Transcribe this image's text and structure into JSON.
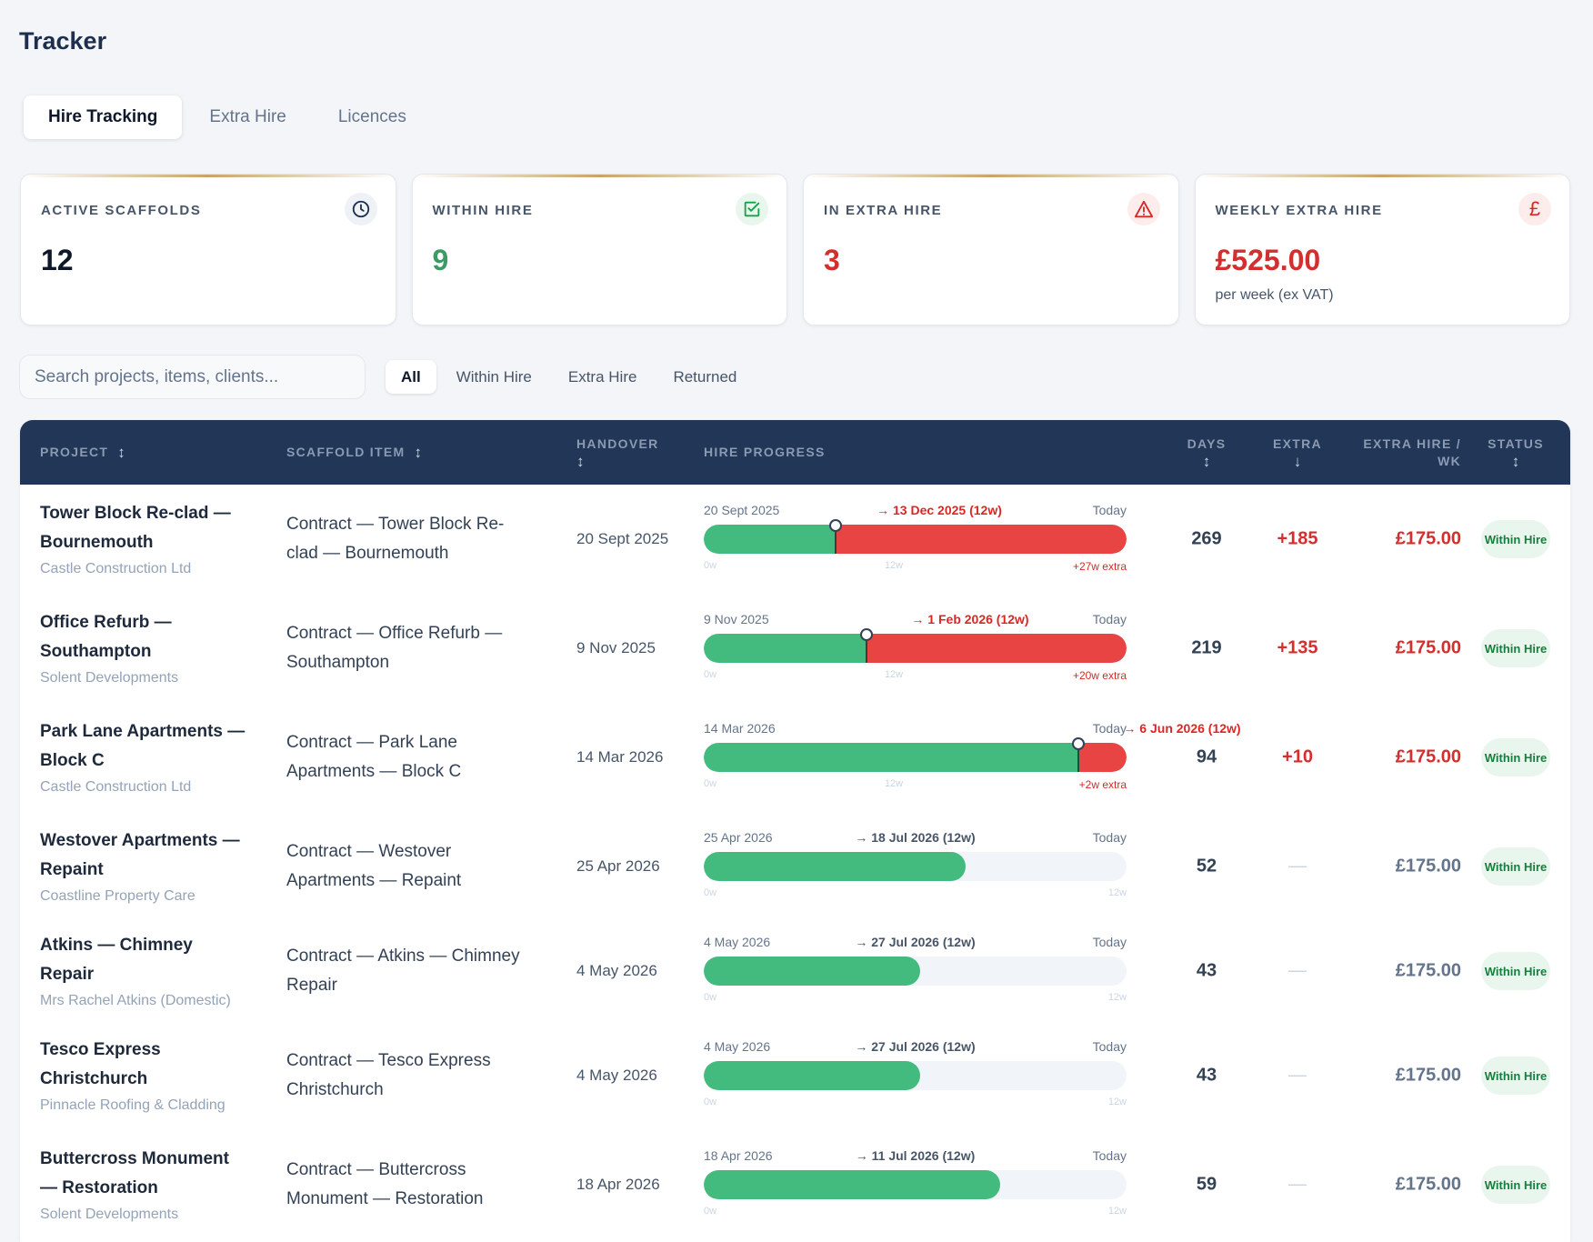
{
  "app": {
    "title": "Tracker"
  },
  "tabs": [
    {
      "label": "Hire Tracking",
      "active": true
    },
    {
      "label": "Extra Hire",
      "active": false
    },
    {
      "label": "Licences",
      "active": false
    }
  ],
  "cards": [
    {
      "label": "ACTIVE SCAFFOLDS",
      "value": "12",
      "icon": "clock-icon",
      "tone": "navy"
    },
    {
      "label": "WITHIN HIRE",
      "value": "9",
      "icon": "check-square-icon",
      "tone": "green"
    },
    {
      "label": "IN EXTRA HIRE",
      "value": "3",
      "icon": "warning-icon",
      "tone": "red"
    },
    {
      "label": "WEEKLY EXTRA HIRE",
      "value": "£525.00",
      "sub": "per week (ex VAT)",
      "icon": "pound-icon",
      "tone": "red"
    }
  ],
  "search": {
    "placeholder": "Search projects, items, clients...",
    "value": ""
  },
  "filters": [
    {
      "label": "All",
      "active": true
    },
    {
      "label": "Within Hire",
      "active": false
    },
    {
      "label": "Extra Hire",
      "active": false
    },
    {
      "label": "Returned",
      "active": false
    }
  ],
  "table": {
    "columns": [
      {
        "label": "PROJECT",
        "sort": "↕"
      },
      {
        "label": "SCAFFOLD ITEM",
        "sort": "↕"
      },
      {
        "label": "HANDOVER",
        "sort": "↕"
      },
      {
        "label": "HIRE PROGRESS",
        "sort": ""
      },
      {
        "label": "DAYS",
        "sort": "↕"
      },
      {
        "label": "EXTRA",
        "sort": "↓"
      },
      {
        "label": "EXTRA HIRE / WK",
        "sort": ""
      },
      {
        "label": "STATUS",
        "sort": "↕"
      }
    ],
    "rows": [
      {
        "project": "Tower Block Re-clad — Bournemouth",
        "client": "Castle Construction Ltd",
        "item": "Contract — Tower Block Re-clad — Bournemouth",
        "handover": "20 Sept 2025",
        "progress": {
          "start": "20 Sept 2025",
          "due": "→ 13 Dec 2025 (12w)",
          "today": "Today",
          "zero": "0w",
          "mid": "12w",
          "extra_label": "+27w extra",
          "hire_fraction": 0.3125,
          "overdue": true
        },
        "days": "269",
        "extra": "+185",
        "weekly": "£175.00",
        "status": "Within Hire"
      },
      {
        "project": "Office Refurb — Southampton",
        "client": "Solent Developments",
        "item": "Contract — Office Refurb — Southampton",
        "handover": "9 Nov 2025",
        "progress": {
          "start": "9 Nov 2025",
          "due": "→ 1 Feb 2026 (12w)",
          "today": "Today",
          "zero": "0w",
          "mid": "12w",
          "extra_label": "+20w extra",
          "hire_fraction": 0.384,
          "overdue": true
        },
        "days": "219",
        "extra": "+135",
        "weekly": "£175.00",
        "status": "Within Hire"
      },
      {
        "project": "Park Lane Apartments — Block C",
        "client": "Castle Construction Ltd",
        "item": "Contract — Park Lane Apartments — Block C",
        "handover": "14 Mar 2026",
        "progress": {
          "start": "14 Mar 2026",
          "due": "→ 6 Jun 2026 (12w)",
          "today": "Today",
          "zero": "0w",
          "mid": "12w",
          "extra_label": "+2w extra",
          "hire_fraction": 0.885,
          "overdue": true
        },
        "days": "94",
        "extra": "+10",
        "weekly": "£175.00",
        "status": "Within Hire"
      },
      {
        "project": "Westover Apartments — Repaint",
        "client": "Coastline Property Care",
        "item": "Contract — Westover Apartments — Repaint",
        "handover": "25 Apr 2026",
        "progress": {
          "start": "25 Apr 2026",
          "due": "→ 18 Jul 2026 (12w)",
          "today": "Today",
          "zero": "0w",
          "end": "12w",
          "hire_fraction": 0.619,
          "overdue": false
        },
        "days": "52",
        "extra": "—",
        "weekly": "£175.00",
        "status": "Within Hire"
      },
      {
        "project": "Atkins — Chimney Repair",
        "client": "Mrs Rachel Atkins (Domestic)",
        "item": "Contract — Atkins — Chimney Repair",
        "handover": "4 May 2026",
        "progress": {
          "start": "4 May 2026",
          "due": "→ 27 Jul 2026 (12w)",
          "today": "Today",
          "zero": "0w",
          "end": "12w",
          "hire_fraction": 0.512,
          "overdue": false
        },
        "days": "43",
        "extra": "—",
        "weekly": "£175.00",
        "status": "Within Hire"
      },
      {
        "project": "Tesco Express Christchurch",
        "client": "Pinnacle Roofing & Cladding",
        "item": "Contract — Tesco Express Christchurch",
        "handover": "4 May 2026",
        "progress": {
          "start": "4 May 2026",
          "due": "→ 27 Jul 2026 (12w)",
          "today": "Today",
          "zero": "0w",
          "end": "12w",
          "hire_fraction": 0.512,
          "overdue": false
        },
        "days": "43",
        "extra": "—",
        "weekly": "£175.00",
        "status": "Within Hire"
      },
      {
        "project": "Buttercross Monument — Restoration",
        "client": "Solent Developments",
        "item": "Contract — Buttercross Monument — Restoration",
        "handover": "18 Apr 2026",
        "progress": {
          "start": "18 Apr 2026",
          "due": "→ 11 Jul 2026 (12w)",
          "today": "Today",
          "zero": "0w",
          "end": "12w",
          "hire_fraction": 0.702,
          "overdue": false
        },
        "days": "59",
        "extra": "—",
        "weekly": "£175.00",
        "status": "Within Hire"
      }
    ]
  }
}
